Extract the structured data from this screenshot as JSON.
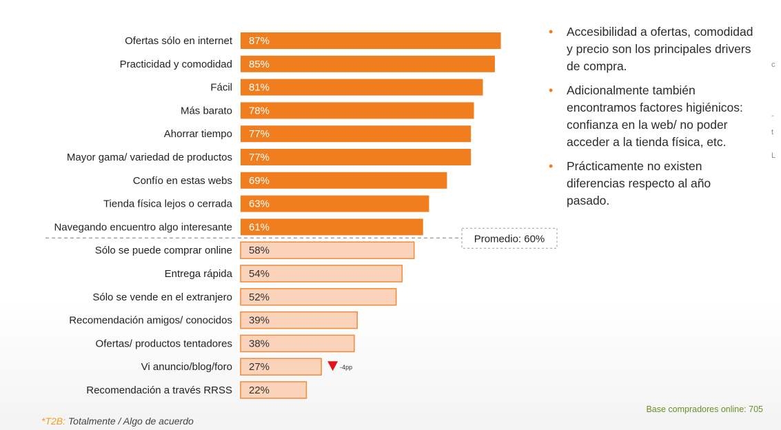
{
  "chart_data": {
    "type": "bar",
    "orientation": "horizontal",
    "categories": [
      "Ofertas sólo en internet",
      "Practicidad y comodidad",
      "Fácil",
      "Más barato",
      "Ahorrar tiempo",
      "Mayor gama/ variedad de productos",
      "Confío en estas webs",
      "Tienda física lejos o  cerrada",
      "Navegando encuentro algo interesante",
      "Sólo se puede comprar online",
      "Entrega rápida",
      "Sólo se vende en el extranjero",
      "Recomendación amigos/ conocidos",
      "Ofertas/ productos tentadores",
      "Vi anuncio/blog/foro",
      "Recomendación a través RRSS"
    ],
    "values": [
      87,
      85,
      81,
      78,
      77,
      77,
      69,
      63,
      61,
      58,
      54,
      52,
      39,
      38,
      27,
      22
    ],
    "value_labels": [
      "87%",
      "85%",
      "81%",
      "78%",
      "77%",
      "77%",
      "69%",
      "63%",
      "61%",
      "58%",
      "54%",
      "52%",
      "39%",
      "38%",
      "27%",
      "22%"
    ],
    "average": {
      "value": 60,
      "label": "Promedio: 60%"
    },
    "annotation": {
      "category_index": 14,
      "label": "-4pp",
      "marker": "red-down-triangle"
    },
    "colors": {
      "above_average_fill": "#f07e1e",
      "below_average_fill": "#fbd3bb",
      "below_average_border": "#f08a3a",
      "above_average_text": "#ffffff",
      "below_average_text": "#333333",
      "annotation": "#e0141a"
    },
    "xlim": [
      0,
      100
    ],
    "grid": false,
    "legend": "none"
  },
  "bullets": [
    "Accesibilidad a ofertas, comodidad y precio son los principales drivers de compra.",
    "Adicionalmente también encontramos factores higiénicos: confianza en la web/ no poder acceder a la tienda física, etc.",
    "Prácticamente no existen diferencias respecto al año pasado."
  ],
  "footnote": {
    "prefix": "*T2B:",
    "text": " Totalmente / Algo de acuerdo"
  },
  "base_note": "Base compradores online: 705",
  "edge_marks": [
    "c",
    "-",
    "t",
    "L"
  ]
}
